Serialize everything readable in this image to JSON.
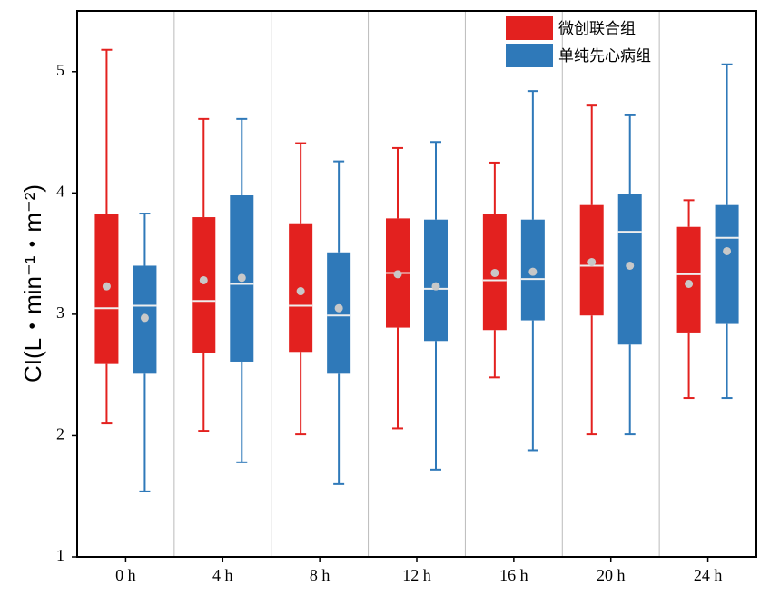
{
  "chart_data": {
    "type": "box",
    "y_label": "CI(L・min⁻¹・m⁻²)",
    "categories": [
      "0 h",
      "4 h",
      "8 h",
      "12 h",
      "16 h",
      "20 h",
      "24 h"
    ],
    "ylim": [
      1,
      5.5
    ],
    "yticks": [
      1,
      2,
      3,
      4,
      5
    ],
    "legend": "top-right",
    "series": [
      {
        "name": "微创联合组",
        "color": "#e3211f",
        "min": [
          2.1,
          2.04,
          2.01,
          2.06,
          2.48,
          2.01,
          2.31
        ],
        "q1": [
          2.59,
          2.68,
          2.69,
          2.89,
          2.87,
          2.99,
          2.85
        ],
        "median": [
          3.05,
          3.11,
          3.07,
          3.34,
          3.28,
          3.4,
          3.33
        ],
        "q3": [
          3.83,
          3.8,
          3.75,
          3.79,
          3.83,
          3.9,
          3.72
        ],
        "max": [
          5.18,
          4.61,
          4.41,
          4.37,
          4.25,
          4.72,
          3.94
        ],
        "mean": [
          3.23,
          3.28,
          3.19,
          3.33,
          3.34,
          3.43,
          3.25
        ]
      },
      {
        "name": "单纯先心病组",
        "color": "#2f79b9",
        "min": [
          1.54,
          1.78,
          1.6,
          1.72,
          1.88,
          2.01,
          2.31
        ],
        "q1": [
          2.51,
          2.61,
          2.51,
          2.78,
          2.95,
          2.75,
          2.92
        ],
        "median": [
          3.07,
          3.25,
          2.99,
          3.21,
          3.29,
          3.68,
          3.63
        ],
        "q3": [
          3.4,
          3.98,
          3.51,
          3.78,
          3.78,
          3.99,
          3.9
        ],
        "max": [
          3.83,
          4.61,
          4.26,
          4.42,
          4.84,
          4.64,
          5.06
        ],
        "mean": [
          2.97,
          3.3,
          3.05,
          3.23,
          3.35,
          3.4,
          3.52
        ]
      }
    ]
  }
}
